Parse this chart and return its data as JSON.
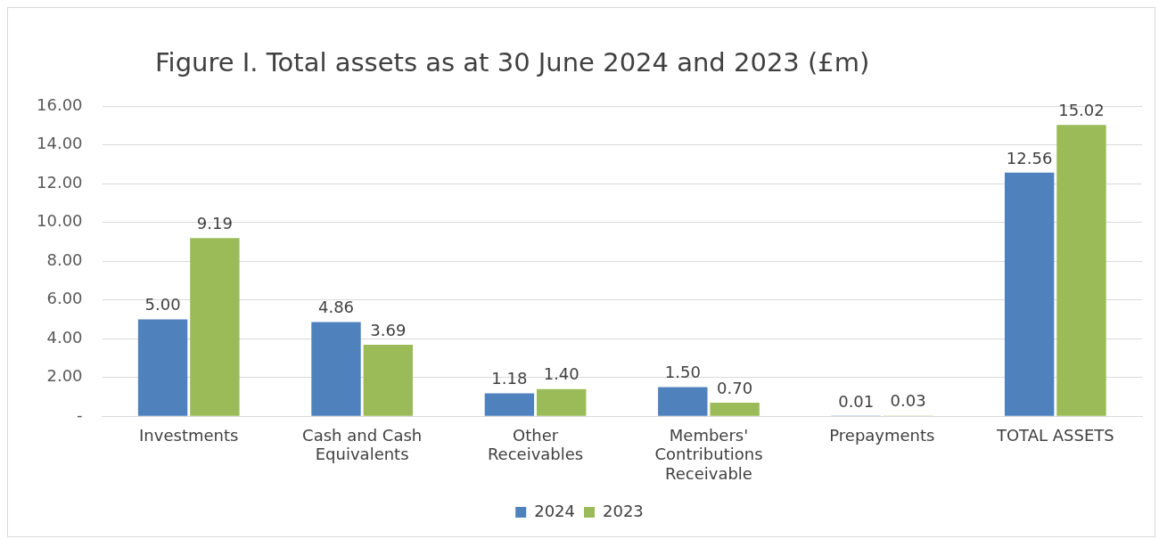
{
  "chart_data": {
    "type": "bar",
    "title": "Figure I. Total assets as at 30 June 2024 and 2023 (£m)",
    "categories": [
      "Investments",
      "Cash and Cash Equivalents",
      "Other Receivables",
      "Members' Contributions Receivable",
      "Prepayments",
      "TOTAL ASSETS"
    ],
    "series": [
      {
        "name": "2024",
        "color": "#4f81bd",
        "values": [
          5.0,
          4.86,
          1.18,
          1.5,
          0.01,
          12.56
        ],
        "value_labels": [
          "5.00",
          "4.86",
          "1.18",
          "1.50",
          "0.01",
          "12.56"
        ]
      },
      {
        "name": "2023",
        "color": "#9bbb59",
        "values": [
          9.19,
          3.69,
          1.4,
          0.7,
          0.03,
          15.02
        ],
        "value_labels": [
          "9.19",
          "3.69",
          "1.40",
          "0.70",
          "0.03",
          "15.02"
        ]
      }
    ],
    "ylim": [
      0,
      16
    ],
    "yticks": [
      {
        "value": 0,
        "label": "-"
      },
      {
        "value": 2,
        "label": "2.00"
      },
      {
        "value": 4,
        "label": "4.00"
      },
      {
        "value": 6,
        "label": "6.00"
      },
      {
        "value": 8,
        "label": "8.00"
      },
      {
        "value": 10,
        "label": "10.00"
      },
      {
        "value": 12,
        "label": "12.00"
      },
      {
        "value": 14,
        "label": "14.00"
      },
      {
        "value": 16,
        "label": "16.00"
      }
    ],
    "grid": "y",
    "legend": "bottom"
  }
}
